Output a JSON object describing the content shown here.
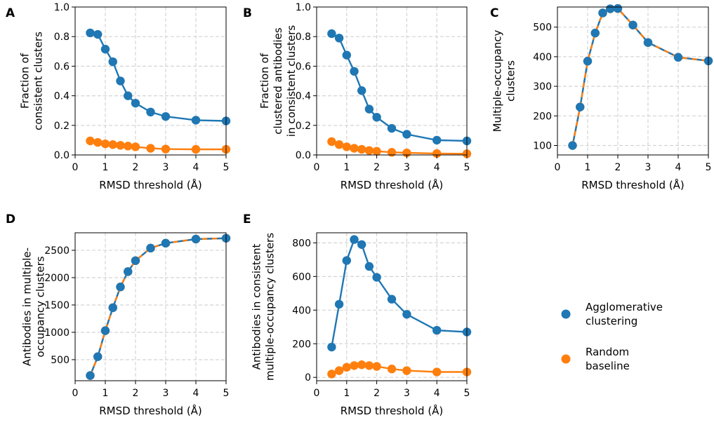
{
  "colors": {
    "agglomerative": "#1f77b4",
    "random": "#ff7f0e",
    "grid": "#d4d4d4"
  },
  "legend": {
    "position": "right",
    "entries": [
      {
        "key": "agglomerative",
        "lines": [
          "Agglomerative",
          "clustering"
        ]
      },
      {
        "key": "random",
        "lines": [
          "Random",
          "baseline"
        ]
      }
    ]
  },
  "chart_data": [
    {
      "panel": "A",
      "type": "line",
      "xlabel": "RMSD threshold (Å)",
      "ylabel": [
        "Fraction of",
        "consistent clusters"
      ],
      "xlim": [
        0,
        5
      ],
      "ylim": [
        0,
        1.0
      ],
      "xticks": [
        0,
        1,
        2,
        3,
        4,
        5
      ],
      "yticks": [
        0.0,
        0.2,
        0.4,
        0.6,
        0.8,
        1.0
      ],
      "ytick_labels": [
        "0.0",
        "0.2",
        "0.4",
        "0.6",
        "0.8",
        "1.0"
      ],
      "x": [
        0.5,
        0.75,
        1.0,
        1.25,
        1.5,
        1.75,
        2.0,
        2.5,
        3.0,
        4.0,
        5.0
      ],
      "series": [
        {
          "name": "Agglomerative clustering",
          "key": "agglomerative",
          "values": [
            0.825,
            0.815,
            0.715,
            0.63,
            0.5,
            0.4,
            0.35,
            0.29,
            0.26,
            0.235,
            0.23
          ]
        },
        {
          "name": "Random baseline",
          "key": "random",
          "values": [
            0.095,
            0.085,
            0.075,
            0.07,
            0.065,
            0.06,
            0.055,
            0.045,
            0.04,
            0.038,
            0.038
          ]
        }
      ]
    },
    {
      "panel": "B",
      "type": "line",
      "xlabel": "RMSD threshold (Å)",
      "ylabel": [
        "Fraction of",
        "clustered antibodies",
        "in consistent clusters"
      ],
      "xlim": [
        0,
        5
      ],
      "ylim": [
        0,
        1.0
      ],
      "xticks": [
        0,
        1,
        2,
        3,
        4,
        5
      ],
      "yticks": [
        0.0,
        0.2,
        0.4,
        0.6,
        0.8,
        1.0
      ],
      "ytick_labels": [
        "0.0",
        "0.2",
        "0.4",
        "0.6",
        "0.8",
        "1.0"
      ],
      "x": [
        0.5,
        0.75,
        1.0,
        1.25,
        1.5,
        1.75,
        2.0,
        2.5,
        3.0,
        4.0,
        5.0
      ],
      "series": [
        {
          "name": "Agglomerative clustering",
          "key": "agglomerative",
          "values": [
            0.82,
            0.79,
            0.675,
            0.565,
            0.435,
            0.31,
            0.255,
            0.18,
            0.14,
            0.1,
            0.095
          ]
        },
        {
          "name": "Random baseline",
          "key": "random",
          "values": [
            0.09,
            0.07,
            0.055,
            0.045,
            0.038,
            0.03,
            0.025,
            0.018,
            0.014,
            0.01,
            0.008
          ]
        }
      ]
    },
    {
      "panel": "C",
      "type": "line",
      "xlabel": "RMSD threshold (Å)",
      "ylabel": [
        "Multiple-occupancy",
        "clusters"
      ],
      "xlim": [
        0,
        5
      ],
      "ylim": [
        68,
        568
      ],
      "xticks": [
        0,
        1,
        2,
        3,
        4,
        5
      ],
      "yticks": [
        100,
        200,
        300,
        400,
        500
      ],
      "ytick_labels": [
        "100",
        "200",
        "300",
        "400",
        "500"
      ],
      "x": [
        0.5,
        0.75,
        1.0,
        1.25,
        1.5,
        1.75,
        2.0,
        2.5,
        3.0,
        4.0,
        5.0
      ],
      "series": [
        {
          "name": "Random baseline",
          "key": "random",
          "values": [
            100,
            230,
            385,
            480,
            548,
            562,
            563,
            507,
            448,
            398,
            386
          ]
        },
        {
          "name": "Agglomerative clustering",
          "key": "agglomerative",
          "values": [
            100,
            230,
            385,
            480,
            548,
            562,
            563,
            507,
            448,
            398,
            386
          ]
        }
      ]
    },
    {
      "panel": "D",
      "type": "line",
      "xlabel": "RMSD threshold (Å)",
      "ylabel": [
        "Antibodies in multiple-",
        "occupancy clusters"
      ],
      "xlim": [
        0,
        5
      ],
      "ylim": [
        115,
        2820
      ],
      "xticks": [
        0,
        1,
        2,
        3,
        4,
        5
      ],
      "yticks": [
        500,
        1000,
        1500,
        2000,
        2500
      ],
      "ytick_labels": [
        "500",
        "1000",
        "1500",
        "2000",
        "2500"
      ],
      "x": [
        0.5,
        0.75,
        1.0,
        1.25,
        1.5,
        1.75,
        2.0,
        2.5,
        3.0,
        4.0,
        5.0
      ],
      "series": [
        {
          "name": "Random baseline",
          "key": "random",
          "values": [
            210,
            555,
            1030,
            1450,
            1830,
            2110,
            2310,
            2540,
            2630,
            2705,
            2720
          ]
        },
        {
          "name": "Agglomerative clustering",
          "key": "agglomerative",
          "values": [
            210,
            555,
            1030,
            1450,
            1830,
            2110,
            2310,
            2540,
            2630,
            2705,
            2720
          ]
        }
      ]
    },
    {
      "panel": "E",
      "type": "line",
      "xlabel": "RMSD threshold (Å)",
      "ylabel": [
        "Antibodies in consistent",
        "multiple-occupancy clusters"
      ],
      "xlim": [
        0,
        5
      ],
      "ylim": [
        -20,
        860
      ],
      "xticks": [
        0,
        1,
        2,
        3,
        4,
        5
      ],
      "yticks": [
        0,
        200,
        400,
        600,
        800
      ],
      "ytick_labels": [
        "0",
        "200",
        "400",
        "600",
        "800"
      ],
      "x": [
        0.5,
        0.75,
        1.0,
        1.25,
        1.5,
        1.75,
        2.0,
        2.5,
        3.0,
        4.0,
        5.0
      ],
      "series": [
        {
          "name": "Agglomerative clustering",
          "key": "agglomerative",
          "values": [
            180,
            435,
            695,
            820,
            790,
            660,
            595,
            465,
            375,
            280,
            270
          ]
        },
        {
          "name": "Random baseline",
          "key": "random",
          "values": [
            20,
            40,
            60,
            70,
            75,
            70,
            65,
            50,
            40,
            32,
            32
          ]
        }
      ]
    }
  ]
}
